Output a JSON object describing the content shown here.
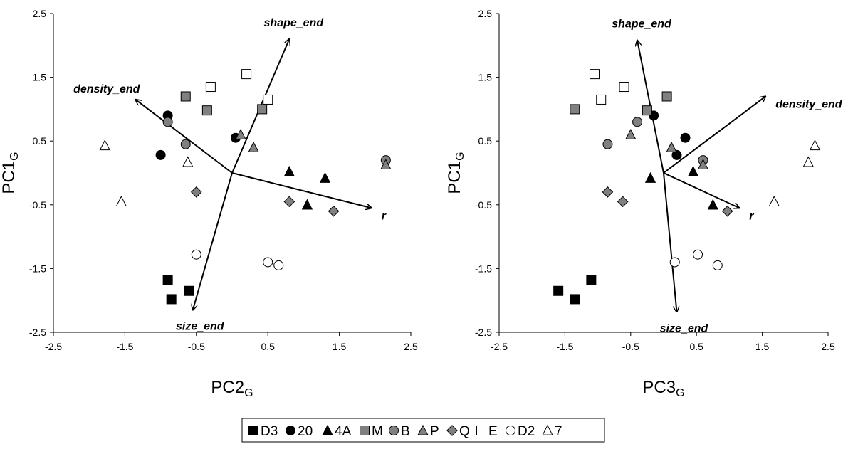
{
  "chart_data": [
    {
      "type": "scatter",
      "title": "",
      "xlabel": "PC2",
      "xlabel_sub": "G",
      "ylabel": "PC1",
      "ylabel_sub": "G",
      "xlim": [
        -2.5,
        2.5
      ],
      "ylim": [
        -2.5,
        2.5
      ],
      "xticks": [
        -2.5,
        -1.5,
        -0.5,
        0.5,
        1.5,
        2.5
      ],
      "yticks": [
        2.5,
        1.5,
        0.5,
        -0.5,
        -1.5,
        -2.5
      ],
      "xtick_labels": [
        "-2.5",
        "-1.5",
        "-0.5",
        "0.5",
        "1.5",
        "2.5"
      ],
      "ytick_labels": [
        "2.5",
        "1.5",
        "0.5",
        "-0.5",
        "-1.5",
        "-2.5"
      ],
      "grid": false,
      "vectors": [
        {
          "label": "shape_end",
          "x": 0.8,
          "y": 2.1
        },
        {
          "label": "density_end",
          "x": -1.35,
          "y": 1.15
        },
        {
          "label": "r",
          "x": 1.95,
          "y": -0.55
        },
        {
          "label": "size_end",
          "x": -0.55,
          "y": -2.15
        }
      ],
      "series": [
        {
          "key": "D3",
          "points": [
            [
              -0.9,
              -1.68
            ],
            [
              -0.85,
              -1.98
            ],
            [
              -0.6,
              -1.85
            ]
          ]
        },
        {
          "key": "20",
          "points": [
            [
              -0.9,
              0.9
            ],
            [
              -1.0,
              0.28
            ],
            [
              0.05,
              0.55
            ]
          ]
        },
        {
          "key": "4A",
          "points": [
            [
              0.8,
              0.02
            ],
            [
              1.3,
              -0.08
            ],
            [
              1.05,
              -0.5
            ]
          ]
        },
        {
          "key": "M",
          "points": [
            [
              -0.65,
              1.2
            ],
            [
              -0.35,
              0.98
            ],
            [
              0.42,
              1.0
            ]
          ]
        },
        {
          "key": "B",
          "points": [
            [
              -0.9,
              0.8
            ],
            [
              -0.65,
              0.45
            ],
            [
              2.15,
              0.2
            ]
          ]
        },
        {
          "key": "P",
          "points": [
            [
              0.12,
              0.6
            ],
            [
              0.3,
              0.4
            ],
            [
              2.15,
              0.13
            ]
          ]
        },
        {
          "key": "Q",
          "points": [
            [
              -0.5,
              -0.3
            ],
            [
              0.8,
              -0.45
            ],
            [
              1.42,
              -0.6
            ]
          ]
        },
        {
          "key": "E",
          "points": [
            [
              0.2,
              1.55
            ],
            [
              -0.3,
              1.35
            ],
            [
              0.5,
              1.15
            ]
          ]
        },
        {
          "key": "D2",
          "points": [
            [
              -0.5,
              -1.28
            ],
            [
              0.5,
              -1.4
            ],
            [
              0.65,
              -1.45
            ]
          ]
        },
        {
          "key": "7",
          "points": [
            [
              -1.78,
              0.43
            ],
            [
              -0.62,
              0.17
            ],
            [
              -1.55,
              -0.45
            ]
          ]
        }
      ]
    },
    {
      "type": "scatter",
      "title": "",
      "xlabel": "PC3",
      "xlabel_sub": "G",
      "ylabel": "PC1",
      "ylabel_sub": "G",
      "xlim": [
        -2.5,
        2.5
      ],
      "ylim": [
        -2.5,
        2.5
      ],
      "xticks": [
        -2.5,
        -1.5,
        -0.5,
        0.5,
        1.5,
        2.5
      ],
      "yticks": [
        2.5,
        1.5,
        0.5,
        -0.5,
        -1.5,
        -2.5
      ],
      "xtick_labels": [
        "-2.5",
        "-1.5",
        "-0.5",
        "0.5",
        "1.5",
        "2.5"
      ],
      "ytick_labels": [
        "2.5",
        "1.5",
        "0.5",
        "-0.5",
        "-1.5",
        "-2.5"
      ],
      "grid": false,
      "vectors": [
        {
          "label": "shape_end",
          "x": -0.4,
          "y": 2.08
        },
        {
          "label": "density_end",
          "x": 1.55,
          "y": 1.2
        },
        {
          "label": "r",
          "x": 1.15,
          "y": -0.55
        },
        {
          "label": "size_end",
          "x": 0.2,
          "y": -2.18
        }
      ],
      "series": [
        {
          "key": "D3",
          "points": [
            [
              -1.6,
              -1.85
            ],
            [
              -1.35,
              -1.98
            ],
            [
              -1.1,
              -1.68
            ]
          ]
        },
        {
          "key": "20",
          "points": [
            [
              -0.15,
              0.9
            ],
            [
              0.2,
              0.28
            ],
            [
              0.33,
              0.55
            ]
          ]
        },
        {
          "key": "4A",
          "points": [
            [
              -0.2,
              -0.08
            ],
            [
              0.45,
              0.02
            ],
            [
              0.75,
              -0.5
            ]
          ]
        },
        {
          "key": "M",
          "points": [
            [
              -1.35,
              1.0
            ],
            [
              -0.25,
              0.98
            ],
            [
              0.05,
              1.2
            ]
          ]
        },
        {
          "key": "B",
          "points": [
            [
              -0.85,
              0.45
            ],
            [
              -0.4,
              0.8
            ],
            [
              0.6,
              0.2
            ]
          ]
        },
        {
          "key": "P",
          "points": [
            [
              -0.5,
              0.6
            ],
            [
              0.12,
              0.4
            ],
            [
              0.6,
              0.13
            ]
          ]
        },
        {
          "key": "Q",
          "points": [
            [
              -0.85,
              -0.3
            ],
            [
              -0.62,
              -0.45
            ],
            [
              0.97,
              -0.6
            ]
          ]
        },
        {
          "key": "E",
          "points": [
            [
              -1.05,
              1.55
            ],
            [
              -0.95,
              1.15
            ],
            [
              -0.6,
              1.35
            ]
          ]
        },
        {
          "key": "D2",
          "points": [
            [
              0.17,
              -1.4
            ],
            [
              0.52,
              -1.28
            ],
            [
              0.82,
              -1.45
            ]
          ]
        },
        {
          "key": "7",
          "points": [
            [
              1.68,
              -0.45
            ],
            [
              2.2,
              0.17
            ],
            [
              2.3,
              0.43
            ]
          ]
        }
      ]
    }
  ],
  "legend": {
    "items": [
      {
        "key": "D3",
        "label": "D3"
      },
      {
        "key": "20",
        "label": "20"
      },
      {
        "key": "4A",
        "label": "4A"
      },
      {
        "key": "M",
        "label": "M"
      },
      {
        "key": "B",
        "label": "B"
      },
      {
        "key": "P",
        "label": "P"
      },
      {
        "key": "Q",
        "label": "Q"
      },
      {
        "key": "E",
        "label": "E"
      },
      {
        "key": "D2",
        "label": "D2"
      },
      {
        "key": "7",
        "label": "7"
      }
    ]
  },
  "marker_styles": {
    "D3": {
      "shape": "square",
      "fill": "#000000"
    },
    "20": {
      "shape": "circle",
      "fill": "#000000"
    },
    "4A": {
      "shape": "triangle",
      "fill": "#000000"
    },
    "M": {
      "shape": "square",
      "fill": "#808080"
    },
    "B": {
      "shape": "circle",
      "fill": "#808080"
    },
    "P": {
      "shape": "triangle",
      "fill": "#808080"
    },
    "Q": {
      "shape": "diamond",
      "fill": "#808080"
    },
    "E": {
      "shape": "square",
      "fill": "#ffffff"
    },
    "D2": {
      "shape": "circle",
      "fill": "#ffffff"
    },
    "7": {
      "shape": "triangle",
      "fill": "#ffffff"
    }
  }
}
